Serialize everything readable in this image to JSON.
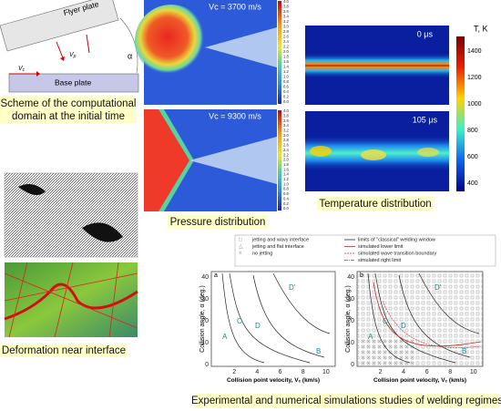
{
  "scheme": {
    "flyer": "Flyer plate",
    "base": "Base plate",
    "alpha": "α",
    "v1": "V",
    "v1_sub": "c",
    "v2": "V",
    "v2_sub": "p",
    "caption": [
      "Scheme of the computational",
      "domain at the initial time"
    ]
  },
  "pressure": {
    "top_label": "Vc = 3700 m/s",
    "bottom_label": "Vc = 9300 m/s",
    "scale_ticks": [
      "4.0",
      "3.8",
      "3.6",
      "3.4",
      "3.2",
      "3.0",
      "2.8",
      "2.6",
      "2.4",
      "2.2",
      "2.0",
      "1.8",
      "1.6",
      "1.4",
      "1.2",
      "1.0",
      "0.8",
      "0.6",
      "0.4",
      "0.2",
      "0.0"
    ],
    "caption": "Pressure distribution"
  },
  "temperature": {
    "unit": "T, K",
    "ticks": [
      "1400",
      "1200",
      "1000",
      "800",
      "600",
      "400"
    ],
    "top_label": "0 μs",
    "bottom_label": "105 μs",
    "caption": "Temperature distribution"
  },
  "deformation": {
    "caption": "Deformation near interface"
  },
  "legend": {
    "items": [
      "jetting and wavy interface",
      "jetting and flat interface",
      "no jetting",
      "limits of \"classical\" welding window",
      "simulated lower limit",
      "simulated wave transition boundary",
      "simulated right limit"
    ]
  },
  "plots": {
    "panels": [
      "a",
      "b"
    ],
    "y_label": "Collision angle, α (deg.)",
    "x_label": [
      "Collision point velocity, ",
      "V",
      "c",
      " (km/s)"
    ],
    "yticks": [
      "0",
      "10",
      "20",
      "30",
      "40"
    ],
    "xticks": [
      "2",
      "4",
      "6",
      "8",
      "10"
    ],
    "annotations_a": [
      "A",
      "C",
      "D",
      "D'",
      "B"
    ],
    "annotations_b": [
      "A",
      "C",
      "D",
      "D'",
      "B"
    ]
  },
  "caption": "Experimental and numerical simulations studies of welding regimes"
}
